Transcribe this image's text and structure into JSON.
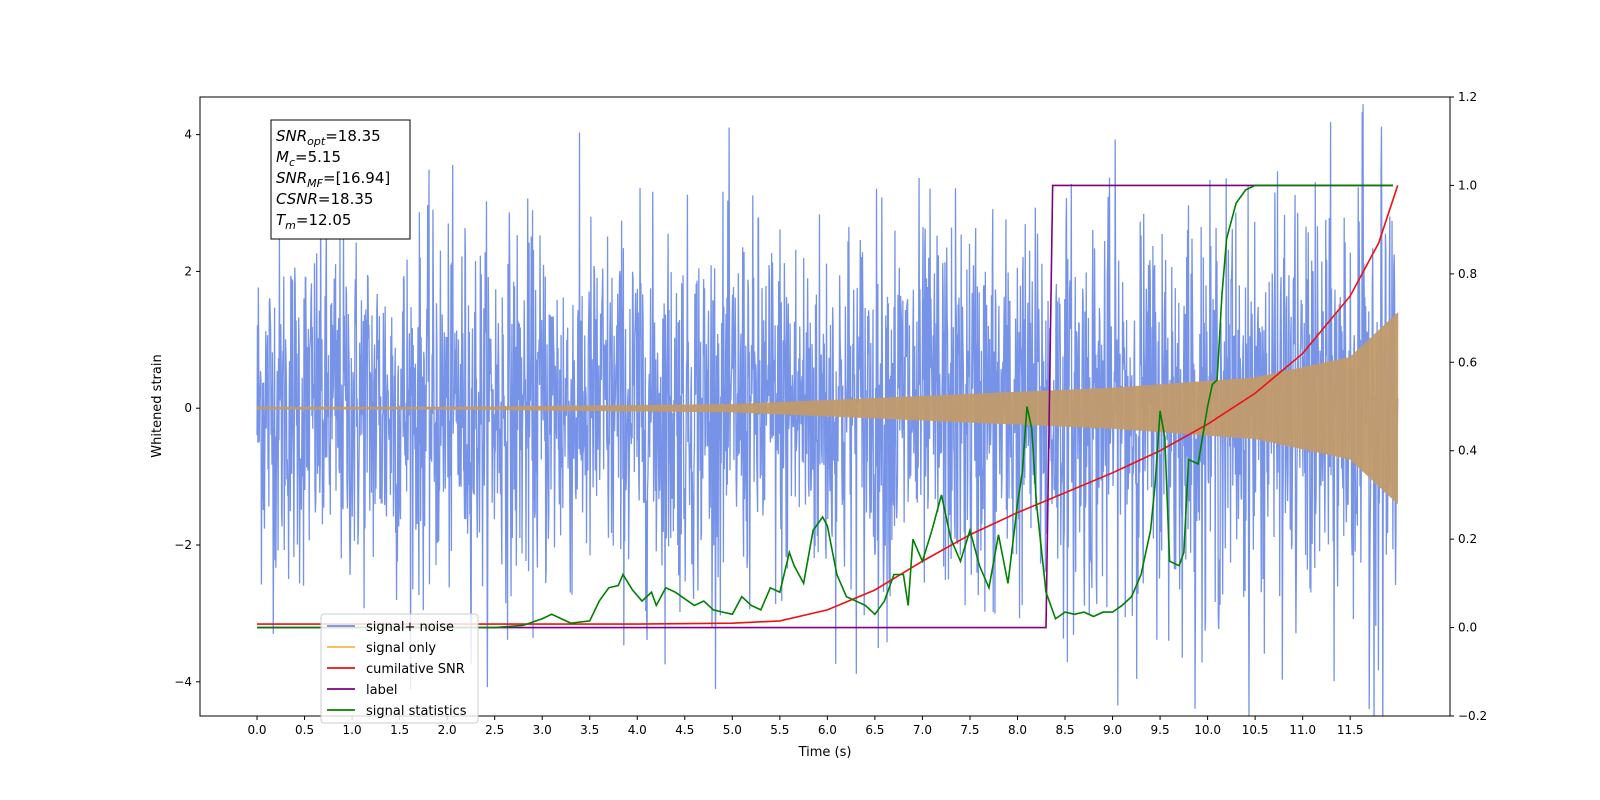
{
  "chart_data": {
    "type": "line",
    "xlabel": "Time (s)",
    "ylabel": "Whitened strain",
    "xlim": [
      -0.6,
      12.55
    ],
    "ylim": [
      -4.5,
      4.55
    ],
    "y2lim": [
      -0.2,
      1.2
    ],
    "x_ticks": [
      0.0,
      0.5,
      1.0,
      1.5,
      2.0,
      2.5,
      3.0,
      3.5,
      4.0,
      4.5,
      5.0,
      5.5,
      6.0,
      6.5,
      7.0,
      7.5,
      8.0,
      8.5,
      9.0,
      9.5,
      10.0,
      10.5,
      11.0,
      11.5
    ],
    "x_tick_labels": [
      "0.0",
      "0.5",
      "1.0",
      "1.5",
      "2.0",
      "2.5",
      "3.0",
      "3.5",
      "4.0",
      "4.5",
      "5.0",
      "5.5",
      "6.0",
      "6.5",
      "7.0",
      "7.5",
      "8.0",
      "8.5",
      "9.0",
      "9.5",
      "10.0",
      "10.5",
      "11.0",
      "11.5"
    ],
    "y_ticks": [
      -4,
      -2,
      0,
      2,
      4
    ],
    "y_tick_labels": [
      "−4",
      "−2",
      "0",
      "2",
      "4"
    ],
    "y2_ticks": [
      -0.2,
      0.0,
      0.2,
      0.4,
      0.6,
      0.8,
      1.0,
      1.2
    ],
    "y2_tick_labels": [
      "−0.2",
      "0.0",
      "0.2",
      "0.4",
      "0.6",
      "0.8",
      "1.0",
      "1.2"
    ],
    "grid": false,
    "legend_position": "lower-left",
    "info_box": {
      "position": "top-left",
      "lines": [
        {
          "sym": "SNR",
          "sub": "opt",
          "rest": "=18.35"
        },
        {
          "sym": "M",
          "sub": "c",
          "rest": "=5.15"
        },
        {
          "sym": "SNR",
          "sub": "MF",
          "rest": "=[16.94]"
        },
        {
          "sym": "CSNR",
          "sub": "",
          "rest": "=18.35"
        },
        {
          "sym": "T",
          "sub": "m",
          "rest": "=12.05"
        }
      ]
    },
    "series": [
      {
        "name": "signal+ noise",
        "color": "#6f8de6",
        "axis": "left",
        "description": "noisy strain, values roughly within -4 to 4 across 0-12 s",
        "envelope": [
          [
            0.0,
            3.0
          ],
          [
            6.0,
            3.2
          ],
          [
            12.0,
            3.5
          ]
        ]
      },
      {
        "name": "signal only",
        "color": "#ffb347",
        "axis": "left",
        "envelope": [
          [
            0.0,
            0.02
          ],
          [
            2.0,
            0.02
          ],
          [
            5.0,
            0.06
          ],
          [
            7.0,
            0.18
          ],
          [
            9.0,
            0.3
          ],
          [
            10.5,
            0.45
          ],
          [
            11.5,
            0.75
          ],
          [
            12.0,
            1.4
          ]
        ]
      },
      {
        "name": "cumilative SNR",
        "color": "#ee1111",
        "axis": "right",
        "x": [
          0.0,
          1.0,
          2.0,
          3.0,
          4.0,
          5.0,
          5.5,
          6.0,
          6.5,
          7.0,
          7.5,
          8.0,
          8.5,
          9.0,
          9.5,
          10.0,
          10.5,
          11.0,
          11.5,
          11.8,
          12.0
        ],
        "y": [
          0.008,
          0.008,
          0.008,
          0.008,
          0.008,
          0.01,
          0.015,
          0.04,
          0.085,
          0.15,
          0.21,
          0.26,
          0.305,
          0.35,
          0.4,
          0.46,
          0.53,
          0.62,
          0.75,
          0.87,
          1.0
        ]
      },
      {
        "name": "label",
        "color": "#800080",
        "axis": "right",
        "x": [
          0.0,
          8.3,
          8.37,
          11.95
        ],
        "y": [
          0.0,
          0.0,
          1.0,
          1.0
        ]
      },
      {
        "name": "signal statistics",
        "color": "#008000",
        "axis": "right",
        "x": [
          0.0,
          2.5,
          2.8,
          3.0,
          3.1,
          3.3,
          3.5,
          3.6,
          3.7,
          3.8,
          3.85,
          3.95,
          4.05,
          4.15,
          4.2,
          4.3,
          4.4,
          4.6,
          4.7,
          4.8,
          4.9,
          5.0,
          5.1,
          5.2,
          5.3,
          5.4,
          5.5,
          5.6,
          5.65,
          5.75,
          5.85,
          5.95,
          6.0,
          6.1,
          6.2,
          6.3,
          6.4,
          6.5,
          6.6,
          6.7,
          6.8,
          6.85,
          6.9,
          7.0,
          7.1,
          7.2,
          7.3,
          7.4,
          7.5,
          7.6,
          7.7,
          7.8,
          7.9,
          8.0,
          8.05,
          8.1,
          8.15,
          8.2,
          8.3,
          8.4,
          8.5,
          8.6,
          8.7,
          8.8,
          8.9,
          9.0,
          9.1,
          9.2,
          9.3,
          9.4,
          9.45,
          9.5,
          9.55,
          9.6,
          9.7,
          9.75,
          9.8,
          9.9,
          10.0,
          10.05,
          10.1,
          10.15,
          10.2,
          10.3,
          10.4,
          10.5,
          10.6,
          11.95
        ],
        "y": [
          0.0,
          0.0,
          0.005,
          0.02,
          0.03,
          0.01,
          0.015,
          0.06,
          0.09,
          0.095,
          0.12,
          0.085,
          0.06,
          0.08,
          0.05,
          0.09,
          0.08,
          0.05,
          0.06,
          0.04,
          0.035,
          0.03,
          0.07,
          0.05,
          0.04,
          0.09,
          0.08,
          0.17,
          0.14,
          0.1,
          0.22,
          0.25,
          0.23,
          0.12,
          0.07,
          0.06,
          0.05,
          0.03,
          0.06,
          0.12,
          0.12,
          0.05,
          0.2,
          0.15,
          0.22,
          0.3,
          0.2,
          0.15,
          0.22,
          0.14,
          0.09,
          0.21,
          0.1,
          0.28,
          0.35,
          0.5,
          0.45,
          0.28,
          0.08,
          0.02,
          0.035,
          0.03,
          0.035,
          0.025,
          0.035,
          0.035,
          0.05,
          0.07,
          0.12,
          0.22,
          0.33,
          0.49,
          0.43,
          0.15,
          0.14,
          0.17,
          0.38,
          0.37,
          0.5,
          0.55,
          0.56,
          0.75,
          0.88,
          0.96,
          0.99,
          1.0,
          1.0,
          1.0
        ]
      }
    ],
    "legend_entries": [
      {
        "label": "signal+ noise",
        "color": "#6f8de6"
      },
      {
        "label": "signal only",
        "color": "#ffb347"
      },
      {
        "label": "cumilative SNR",
        "color": "#ee1111"
      },
      {
        "label": "label",
        "color": "#800080"
      },
      {
        "label": "signal statistics",
        "color": "#008000"
      }
    ]
  }
}
